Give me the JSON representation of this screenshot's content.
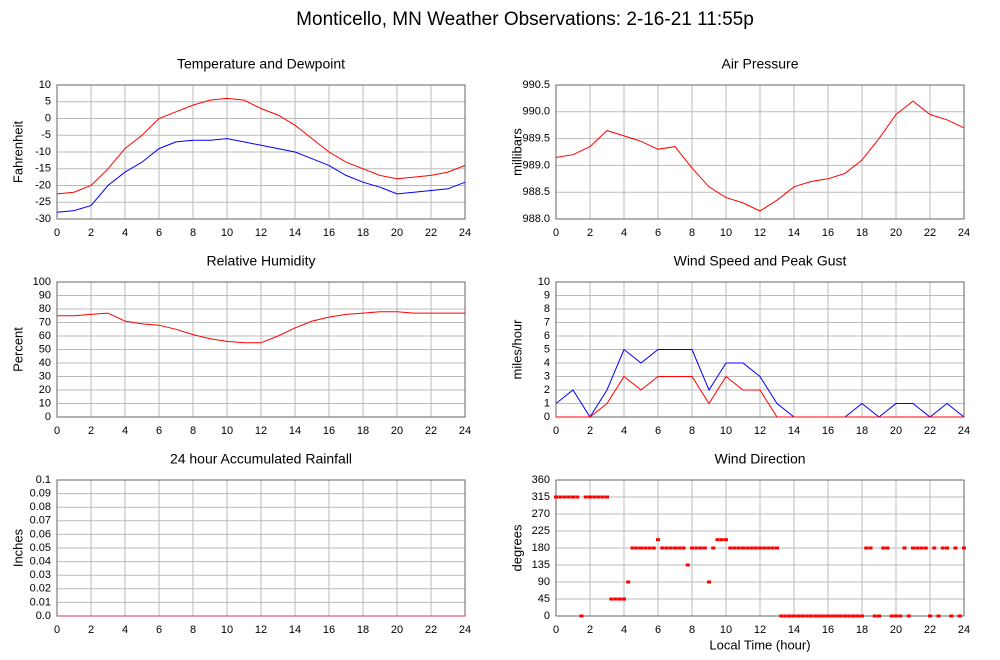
{
  "title": "Monticello, MN Weather Observations: 2-16-21 11:55p",
  "chart_data": [
    {
      "type": "line",
      "title": "Temperature and Dewpoint",
      "ylabel": "Fahrenheit",
      "x": [
        0,
        1,
        2,
        3,
        4,
        5,
        6,
        7,
        8,
        9,
        10,
        11,
        12,
        13,
        14,
        15,
        16,
        17,
        18,
        19,
        20,
        21,
        22,
        23,
        24
      ],
      "series": [
        {
          "color": "#ff0000",
          "values": [
            -22.5,
            -22,
            -20,
            -15,
            -9,
            -5,
            0,
            2,
            4,
            5.5,
            6,
            5.5,
            3,
            1,
            -2,
            -6,
            -10,
            -13,
            -15,
            -17,
            -18,
            -17.5,
            -17,
            -16,
            -14
          ]
        },
        {
          "color": "#0000ff",
          "values": [
            -28,
            -27.5,
            -26,
            -20,
            -16,
            -13,
            -9,
            -7,
            -6.5,
            -6.5,
            -6,
            -7,
            -8,
            -9,
            -10,
            -12,
            -14,
            -17,
            -19,
            -20.5,
            -22.5,
            -22,
            -21.5,
            -21,
            -19
          ]
        }
      ],
      "xlim": [
        0,
        24
      ],
      "xticks": [
        0,
        2,
        4,
        6,
        8,
        10,
        12,
        14,
        16,
        18,
        20,
        22,
        24
      ],
      "ylim": [
        -30,
        10
      ],
      "yticks": [
        -30,
        -25,
        -20,
        -15,
        -10,
        -5,
        0,
        5,
        10
      ],
      "grid": true
    },
    {
      "type": "line",
      "title": "Air Pressure",
      "ylabel": "millibars",
      "x": [
        0,
        1,
        2,
        3,
        4,
        5,
        6,
        7,
        8,
        9,
        10,
        11,
        12,
        13,
        14,
        15,
        16,
        17,
        18,
        19,
        20,
        21,
        22,
        23,
        24
      ],
      "series": [
        {
          "color": "#ff0000",
          "values": [
            989.15,
            989.2,
            989.35,
            989.65,
            989.55,
            989.45,
            989.3,
            989.35,
            988.95,
            988.6,
            988.4,
            988.3,
            988.15,
            988.35,
            988.6,
            988.7,
            988.75,
            988.85,
            989.1,
            989.5,
            989.95,
            990.2,
            989.95,
            989.85,
            989.7
          ]
        }
      ],
      "xlim": [
        0,
        24
      ],
      "xticks": [
        0,
        2,
        4,
        6,
        8,
        10,
        12,
        14,
        16,
        18,
        20,
        22,
        24
      ],
      "ylim": [
        988,
        990.5
      ],
      "yticks": [
        {
          "value": 988,
          "label": "988.0"
        },
        988.5,
        {
          "value": 989,
          "label": "989.0"
        },
        989.5,
        {
          "value": 990,
          "label": "990.0"
        },
        990.5
      ],
      "grid": true
    },
    {
      "type": "line",
      "title": "Relative Humidity",
      "ylabel": "Percent",
      "x": [
        0,
        1,
        2,
        3,
        4,
        5,
        6,
        7,
        8,
        9,
        10,
        11,
        12,
        13,
        14,
        15,
        16,
        17,
        18,
        19,
        20,
        21,
        22,
        23,
        24
      ],
      "series": [
        {
          "color": "#ff0000",
          "values": [
            75,
            75,
            76,
            77,
            71,
            69,
            68,
            65,
            61,
            58,
            56,
            55,
            55,
            60,
            66,
            71,
            74,
            76,
            77,
            78,
            78,
            77,
            77,
            77,
            77
          ]
        }
      ],
      "xlim": [
        0,
        24
      ],
      "xticks": [
        0,
        2,
        4,
        6,
        8,
        10,
        12,
        14,
        16,
        18,
        20,
        22,
        24
      ],
      "ylim": [
        0,
        100
      ],
      "yticks": [
        0,
        10,
        20,
        30,
        40,
        50,
        60,
        70,
        80,
        90,
        100
      ],
      "grid": true
    },
    {
      "type": "line",
      "title": "Wind Speed and Peak Gust",
      "ylabel": "miles/hour",
      "x": [
        0,
        1,
        2,
        3,
        4,
        5,
        6,
        7,
        8,
        9,
        10,
        11,
        12,
        13,
        14,
        15,
        16,
        17,
        18,
        19,
        20,
        21,
        22,
        23,
        24
      ],
      "series": [
        {
          "color": "#0000ff",
          "values": [
            1,
            2,
            0,
            2,
            5,
            4,
            5,
            5,
            5,
            2,
            4,
            4,
            3,
            1,
            0,
            0,
            0,
            0,
            1,
            0,
            1,
            1,
            0,
            1,
            0
          ]
        },
        {
          "color": "#ff0000",
          "values": [
            0,
            0,
            0,
            1,
            3,
            2,
            3,
            3,
            3,
            1,
            3,
            2,
            2,
            0,
            0,
            0,
            0,
            0,
            0,
            0,
            0,
            0,
            0,
            0,
            0
          ]
        }
      ],
      "xlim": [
        0,
        24
      ],
      "xticks": [
        0,
        2,
        4,
        6,
        8,
        10,
        12,
        14,
        16,
        18,
        20,
        22,
        24
      ],
      "ylim": [
        0,
        10
      ],
      "yticks": [
        0,
        1,
        2,
        3,
        4,
        5,
        6,
        7,
        8,
        9,
        10
      ],
      "grid": true
    },
    {
      "type": "line",
      "title": "24 hour Accumulated Rainfall",
      "ylabel": "Inches",
      "x": [
        0,
        1,
        2,
        3,
        4,
        5,
        6,
        7,
        8,
        9,
        10,
        11,
        12,
        13,
        14,
        15,
        16,
        17,
        18,
        19,
        20,
        21,
        22,
        23,
        24
      ],
      "series": [
        {
          "color": "#d03070",
          "values": [
            0,
            0,
            0,
            0,
            0,
            0,
            0,
            0,
            0,
            0,
            0,
            0,
            0,
            0,
            0,
            0,
            0,
            0,
            0,
            0,
            0,
            0,
            0,
            0,
            0
          ]
        }
      ],
      "xlim": [
        0,
        24
      ],
      "xticks": [
        0,
        2,
        4,
        6,
        8,
        10,
        12,
        14,
        16,
        18,
        20,
        22,
        24
      ],
      "ylim": [
        0,
        0.1
      ],
      "yticks": [
        {
          "value": 0,
          "label": "0.0"
        },
        0.01,
        0.02,
        0.03,
        0.04,
        0.05,
        0.06,
        0.07,
        0.08,
        0.09,
        0.1
      ],
      "grid": true
    },
    {
      "type": "scatter",
      "title": "Wind Direction",
      "ylabel": "degrees",
      "xlabel": "Local Time (hour)",
      "x": [
        0,
        0.25,
        0.5,
        0.75,
        1,
        1.25,
        1.5,
        1.75,
        2,
        2.25,
        2.5,
        2.75,
        3,
        3.25,
        3.5,
        3.75,
        4,
        4.25,
        4.5,
        4.75,
        5,
        5.25,
        5.5,
        5.75,
        6,
        6.25,
        6.5,
        6.75,
        7,
        7.25,
        7.5,
        7.75,
        8,
        8.25,
        8.5,
        8.75,
        9,
        9.25,
        9.5,
        9.75,
        10,
        10.25,
        10.5,
        10.75,
        11,
        11.25,
        11.5,
        11.75,
        12,
        12.25,
        12.5,
        12.75,
        13,
        13.25,
        13.5,
        13.75,
        14,
        14.25,
        14.5,
        14.75,
        15,
        15.25,
        15.5,
        15.75,
        16,
        16.25,
        16.5,
        16.75,
        17,
        17.25,
        17.5,
        17.75,
        18,
        18.25,
        18.5,
        18.75,
        19,
        19.25,
        19.5,
        19.75,
        20,
        20.25,
        20.5,
        20.75,
        21,
        21.25,
        21.5,
        21.75,
        22,
        22.25,
        22.5,
        22.75,
        23,
        23.25,
        23.5,
        23.75,
        24
      ],
      "series": [
        {
          "color": "#ff0000",
          "values": [
            315,
            315,
            315,
            315,
            315,
            315,
            0,
            315,
            315,
            315,
            315,
            315,
            315,
            45,
            45,
            45,
            45,
            90,
            180,
            180,
            180,
            180,
            180,
            180,
            202,
            180,
            180,
            180,
            180,
            180,
            180,
            135,
            180,
            180,
            180,
            180,
            90,
            180,
            202,
            202,
            202,
            180,
            180,
            180,
            180,
            180,
            180,
            180,
            180,
            180,
            180,
            180,
            180,
            0,
            0,
            0,
            0,
            0,
            0,
            0,
            0,
            0,
            0,
            0,
            0,
            0,
            0,
            0,
            0,
            0,
            0,
            0,
            0,
            180,
            180,
            0,
            0,
            180,
            180,
            0,
            0,
            0,
            180,
            0,
            180,
            180,
            180,
            180,
            0,
            180,
            0,
            180,
            180,
            0,
            180,
            0,
            180
          ]
        }
      ],
      "xlim": [
        0,
        24
      ],
      "xticks": [
        0,
        2,
        4,
        6,
        8,
        10,
        12,
        14,
        16,
        18,
        20,
        22,
        24
      ],
      "ylim": [
        0,
        360
      ],
      "yticks": [
        0,
        45,
        90,
        135,
        180,
        225,
        270,
        315,
        360
      ],
      "grid": true
    }
  ]
}
